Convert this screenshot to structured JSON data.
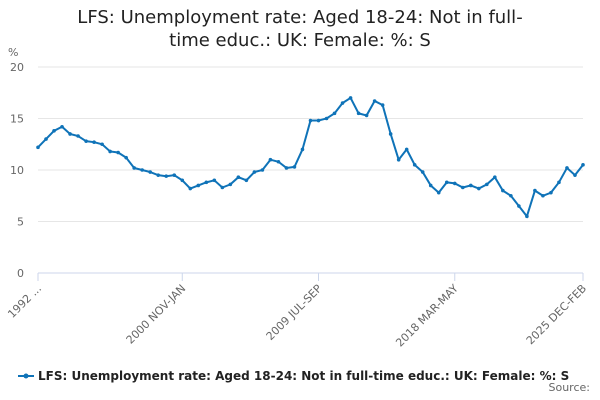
{
  "chart_data": {
    "type": "line",
    "title": "LFS: Unemployment rate: Aged 18-24: Not in full-time educ.: UK: Female: %: S",
    "y_label": "%",
    "source": "Source:",
    "categories": [
      "1992 ...",
      null,
      null,
      null,
      null,
      null,
      null,
      null,
      null,
      null,
      null,
      null,
      null,
      null,
      null,
      null,
      null,
      null,
      "2000 NOV-JAN",
      null,
      null,
      null,
      null,
      null,
      null,
      null,
      null,
      null,
      null,
      null,
      null,
      null,
      null,
      null,
      null,
      "2009 JUL-SEP",
      null,
      null,
      null,
      null,
      null,
      null,
      null,
      null,
      null,
      null,
      null,
      null,
      null,
      null,
      null,
      null,
      "2018 MAR-MAY",
      null,
      null,
      null,
      null,
      null,
      null,
      null,
      null,
      null,
      null,
      null,
      null,
      null,
      null,
      null,
      "2025 DEC-FEB"
    ],
    "series": [
      {
        "name": "LFS: Unemployment rate: Aged 18-24: Not in full-time educ.: UK: Female: %: S",
        "color": "#0f73b8",
        "values": [
          12.2,
          13,
          13.8,
          14.2,
          13.5,
          13.3,
          12.8,
          12.7,
          12.5,
          11.8,
          11.7,
          11.2,
          10.2,
          10.0,
          9.8,
          9.5,
          9.4,
          9.5,
          9.0,
          8.2,
          8.5,
          8.8,
          9.0,
          8.3,
          8.6,
          9.3,
          9.0,
          9.8,
          10.0,
          11.0,
          10.8,
          10.2,
          10.3,
          12.0,
          14.8,
          14.8,
          15.0,
          15.5,
          16.5,
          17.0,
          15.5,
          15.3,
          16.7,
          16.3,
          13.5,
          11.0,
          12.0,
          10.5,
          9.8,
          8.5,
          7.8,
          8.8,
          8.7,
          8.3,
          8.5,
          8.2,
          8.6,
          9.3,
          8.0,
          7.5,
          6.5,
          5.5,
          8.0,
          7.5,
          7.8,
          8.8,
          10.2,
          9.5,
          10.5
        ]
      }
    ],
    "ylim": [
      0,
      20
    ],
    "yticks": [
      0,
      5,
      10,
      15,
      20
    ],
    "grid": true
  }
}
